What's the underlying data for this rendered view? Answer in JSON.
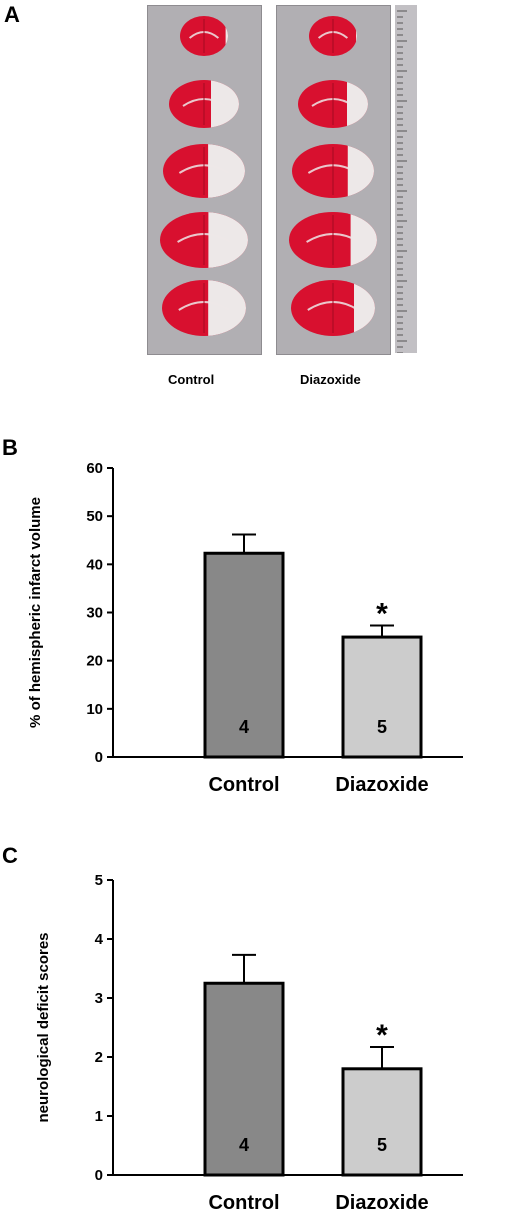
{
  "panel_a": {
    "letter": "A",
    "labels": [
      "Control",
      "Diazoxide"
    ],
    "colors": {
      "background": "#b1afb3",
      "tissue_red": "#d8102f",
      "tissue_white": "#ede8e8"
    }
  },
  "chart_data": [
    {
      "type": "bar",
      "panel": "B",
      "categories": [
        "Control",
        "Diazoxide"
      ],
      "values": [
        42.3,
        24.9
      ],
      "errors": [
        3.9,
        2.4
      ],
      "n_labels": [
        "4",
        "5"
      ],
      "significance": [
        "",
        "*"
      ],
      "ylabel": "% of hemispheric infarct volume",
      "xlabel": "",
      "ylim": [
        0,
        60
      ],
      "yticks": [
        0,
        10,
        20,
        30,
        40,
        50,
        60
      ],
      "colors": [
        "#888888",
        "#cccccc"
      ],
      "grid": false
    },
    {
      "type": "bar",
      "panel": "C",
      "categories": [
        "Control",
        "Diazoxide"
      ],
      "values": [
        3.25,
        1.8
      ],
      "errors": [
        0.48,
        0.37
      ],
      "n_labels": [
        "4",
        "5"
      ],
      "significance": [
        "",
        "*"
      ],
      "ylabel": "neurological deficit scores",
      "xlabel": "",
      "ylim": [
        0,
        5
      ],
      "yticks": [
        0,
        1,
        2,
        3,
        4,
        5
      ],
      "colors": [
        "#888888",
        "#cccccc"
      ],
      "grid": false
    }
  ]
}
